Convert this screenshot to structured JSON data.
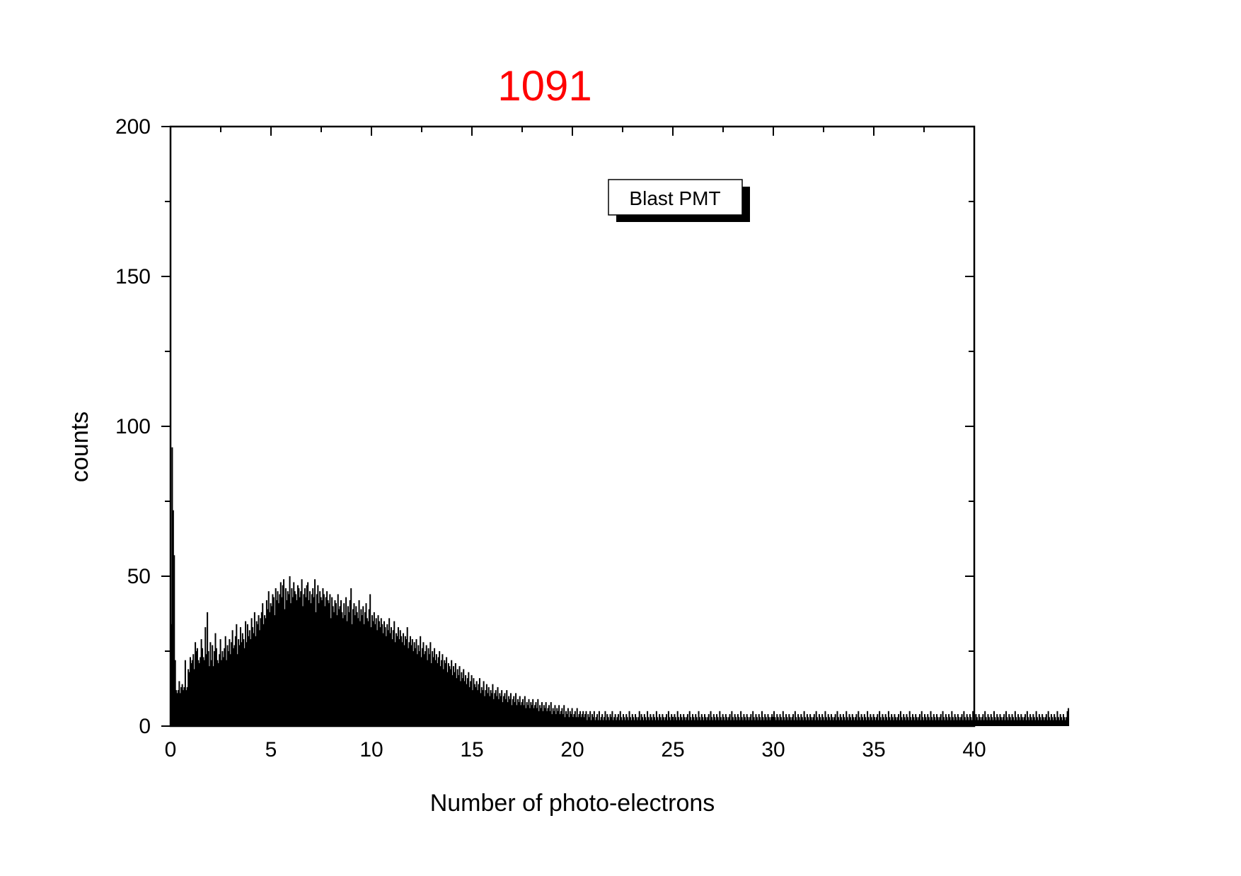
{
  "chart_data": {
    "type": "bar",
    "title": "1091",
    "title_color": "#ff0000",
    "bar_color": "#000000",
    "xlabel": "Number of photo-electrons",
    "ylabel": "counts",
    "xlim": [
      0,
      40
    ],
    "ylim": [
      0,
      200
    ],
    "xticks": [
      0,
      5,
      10,
      15,
      20,
      25,
      30,
      35,
      40
    ],
    "yticks": [
      0,
      50,
      100,
      150,
      200
    ],
    "x_minor_step": 2.5,
    "y_minor_step": 25,
    "grid": false,
    "legend": {
      "entries": [
        "Blast PMT"
      ],
      "position": "top-center"
    },
    "series": [
      {
        "bin_width": 0.05,
        "values": [
          34,
          93,
          72,
          57,
          22,
          12,
          11,
          12,
          15,
          11,
          13,
          14,
          12,
          13,
          22,
          12,
          13,
          19,
          18,
          23,
          21,
          22,
          24,
          19,
          28,
          25,
          26,
          22,
          21,
          23,
          29,
          26,
          23,
          22,
          33,
          24,
          38,
          25,
          20,
          28,
          22,
          27,
          20,
          25,
          31,
          26,
          22,
          21,
          24,
          29,
          22,
          25,
          23,
          26,
          30,
          22,
          27,
          25,
          29,
          24,
          28,
          32,
          26,
          27,
          30,
          34,
          24,
          29,
          27,
          33,
          28,
          31,
          29,
          26,
          35,
          28,
          34,
          30,
          32,
          29,
          36,
          33,
          31,
          38,
          30,
          35,
          34,
          37,
          32,
          36,
          38,
          41,
          34,
          37,
          36,
          42,
          39,
          45,
          38,
          41,
          40,
          44,
          43,
          37,
          46,
          42,
          45,
          41,
          44,
          48,
          43,
          47,
          49,
          39,
          46,
          42,
          45,
          44,
          50,
          41,
          46,
          43,
          48,
          45,
          44,
          42,
          47,
          46,
          43,
          45,
          49,
          40,
          44,
          46,
          43,
          47,
          48,
          42,
          45,
          41,
          44,
          46,
          43,
          49,
          38,
          44,
          47,
          41,
          45,
          43,
          42,
          46,
          44,
          40,
          43,
          45,
          42,
          41,
          44,
          36,
          43,
          40,
          38,
          42,
          41,
          37,
          44,
          39,
          40,
          42,
          38,
          36,
          41,
          37,
          43,
          35,
          40,
          38,
          42,
          46,
          34,
          39,
          41,
          37,
          40,
          38,
          36,
          42,
          35,
          39,
          37,
          40,
          34,
          38,
          41,
          36,
          35,
          39,
          44,
          33,
          37,
          35,
          38,
          34,
          36,
          32,
          37,
          35,
          33,
          36,
          34,
          31,
          35,
          33,
          30,
          34,
          32,
          36,
          31,
          33,
          29,
          32,
          35,
          28,
          31,
          30,
          33,
          29,
          32,
          30,
          28,
          31,
          27,
          30,
          29,
          33,
          26,
          28,
          30,
          27,
          29,
          25,
          28,
          26,
          29,
          24,
          27,
          25,
          30,
          23,
          26,
          28,
          24,
          25,
          27,
          22,
          26,
          24,
          28,
          21,
          25,
          23,
          26,
          22,
          24,
          21,
          23,
          25,
          20,
          22,
          24,
          19,
          22,
          21,
          23,
          18,
          21,
          20,
          19,
          22,
          17,
          20,
          18,
          21,
          16,
          19,
          17,
          20,
          15,
          18,
          16,
          19,
          15,
          17,
          14,
          16,
          18,
          13,
          15,
          17,
          12,
          16,
          14,
          13,
          15,
          12,
          14,
          16,
          11,
          13,
          12,
          15,
          10,
          12,
          14,
          11,
          13,
          10,
          12,
          11,
          14,
          9,
          11,
          12,
          10,
          13,
          9,
          11,
          10,
          12,
          8,
          10,
          11,
          9,
          12,
          8,
          10,
          9,
          11,
          7,
          9,
          10,
          8,
          11,
          7,
          9,
          8,
          10,
          7,
          8,
          9,
          7,
          10,
          6,
          8,
          7,
          9,
          6,
          8,
          7,
          9,
          6,
          7,
          8,
          6,
          9,
          5,
          7,
          6,
          8,
          5,
          7,
          6,
          8,
          5,
          6,
          7,
          5,
          8,
          4,
          6,
          5,
          7,
          4,
          6,
          5,
          7,
          4,
          5,
          6,
          4,
          7,
          3,
          5,
          4,
          6,
          3,
          5,
          4,
          6,
          3,
          4,
          5,
          3,
          6,
          3,
          4,
          5,
          3,
          4,
          5,
          3,
          4,
          5,
          2,
          4,
          3,
          5,
          2,
          4,
          3,
          5,
          2,
          3,
          4,
          2,
          5,
          2,
          3,
          4,
          2,
          3,
          5,
          2,
          4,
          3,
          2,
          4,
          3,
          5,
          2,
          3,
          4,
          2,
          3,
          4,
          2,
          5,
          3,
          2,
          4,
          3,
          2,
          4,
          3,
          2,
          5,
          3,
          2,
          4,
          3,
          2,
          4,
          3,
          2,
          3,
          5,
          2,
          4,
          3,
          2,
          4,
          3,
          2,
          5,
          3,
          2,
          4,
          3,
          2,
          4,
          3,
          2,
          5,
          3,
          2,
          4,
          3,
          2,
          4,
          3,
          2,
          3,
          4,
          2,
          5,
          3,
          2,
          4,
          3,
          2,
          4,
          3,
          2,
          5,
          3,
          2,
          4,
          3,
          2,
          4,
          3,
          2,
          3,
          4,
          2,
          5,
          3,
          2,
          4,
          3,
          2,
          4,
          3,
          2,
          5,
          3,
          2,
          4,
          3,
          2,
          4,
          3,
          2,
          3,
          4,
          2,
          5,
          3,
          2,
          4,
          3,
          2,
          4,
          3,
          2,
          5,
          3,
          2,
          4,
          3,
          2,
          4,
          3,
          2,
          3,
          4,
          2,
          5,
          3,
          2,
          4,
          3,
          2,
          4,
          3,
          2,
          5,
          3,
          2,
          4,
          3,
          2,
          4,
          3,
          2,
          3,
          4,
          2,
          5,
          3,
          2,
          4,
          3,
          2,
          4,
          3,
          2,
          5,
          3,
          2,
          4,
          3,
          2,
          4,
          3,
          2,
          3,
          4,
          2,
          5,
          3,
          2,
          4,
          3,
          2,
          4,
          3,
          2,
          5,
          3,
          2,
          4,
          3,
          2,
          4,
          3,
          2,
          3,
          4,
          2,
          5,
          3,
          2,
          4,
          3,
          2,
          4,
          3,
          2,
          5,
          3,
          2,
          4,
          3,
          2,
          4,
          3,
          2,
          3,
          4,
          2,
          5,
          3,
          2,
          4,
          3,
          2,
          4,
          3,
          2,
          5,
          3,
          2,
          4,
          3,
          2,
          4,
          3,
          2,
          3,
          4,
          2,
          5,
          3,
          2,
          4,
          3,
          2,
          4,
          3,
          2,
          5,
          3,
          2,
          4,
          3,
          2,
          4,
          3,
          2,
          3,
          4,
          2,
          5,
          3,
          2,
          4,
          3,
          2,
          4,
          3,
          2,
          5,
          3,
          2,
          4,
          3,
          2,
          4,
          3,
          2,
          3,
          4,
          2,
          5,
          3,
          2,
          4,
          3,
          2,
          4,
          3,
          2,
          5,
          3,
          2,
          4,
          3,
          2,
          4,
          3,
          2,
          3,
          4,
          2,
          5,
          3,
          2,
          4,
          3,
          2,
          4,
          3,
          2,
          5,
          3,
          2,
          4,
          3,
          2,
          4,
          3,
          2,
          3,
          4,
          2,
          5,
          3,
          2,
          4,
          3,
          2,
          4,
          3,
          2,
          5,
          3,
          2,
          4,
          3,
          2,
          4,
          3,
          2,
          3,
          4,
          2,
          5,
          3,
          2,
          4,
          3,
          2,
          4,
          3,
          2,
          5,
          3,
          2,
          4,
          3,
          2,
          4,
          3,
          2,
          3,
          4,
          2,
          5,
          3,
          2,
          4,
          3,
          2,
          4,
          3,
          2,
          5,
          3,
          2,
          4,
          3,
          2,
          4,
          3,
          2,
          3,
          4,
          2,
          5,
          3,
          2,
          4,
          3,
          2,
          4,
          3,
          2,
          5,
          3,
          2,
          4,
          3,
          2,
          4,
          3,
          2,
          3,
          4,
          2,
          5,
          3,
          2,
          4,
          3,
          2,
          4,
          3,
          2,
          5,
          3,
          2,
          4,
          3,
          2,
          4,
          3,
          2,
          3,
          4,
          2,
          5,
          3,
          2,
          4,
          3,
          2,
          4,
          3,
          2,
          5,
          3,
          2,
          4,
          3,
          2,
          4,
          3,
          2,
          3,
          4,
          2,
          5,
          3,
          2,
          4,
          3,
          2,
          4,
          3,
          2,
          5,
          3,
          2,
          4,
          3,
          2,
          4,
          3,
          2,
          3,
          5,
          6
        ]
      }
    ]
  }
}
